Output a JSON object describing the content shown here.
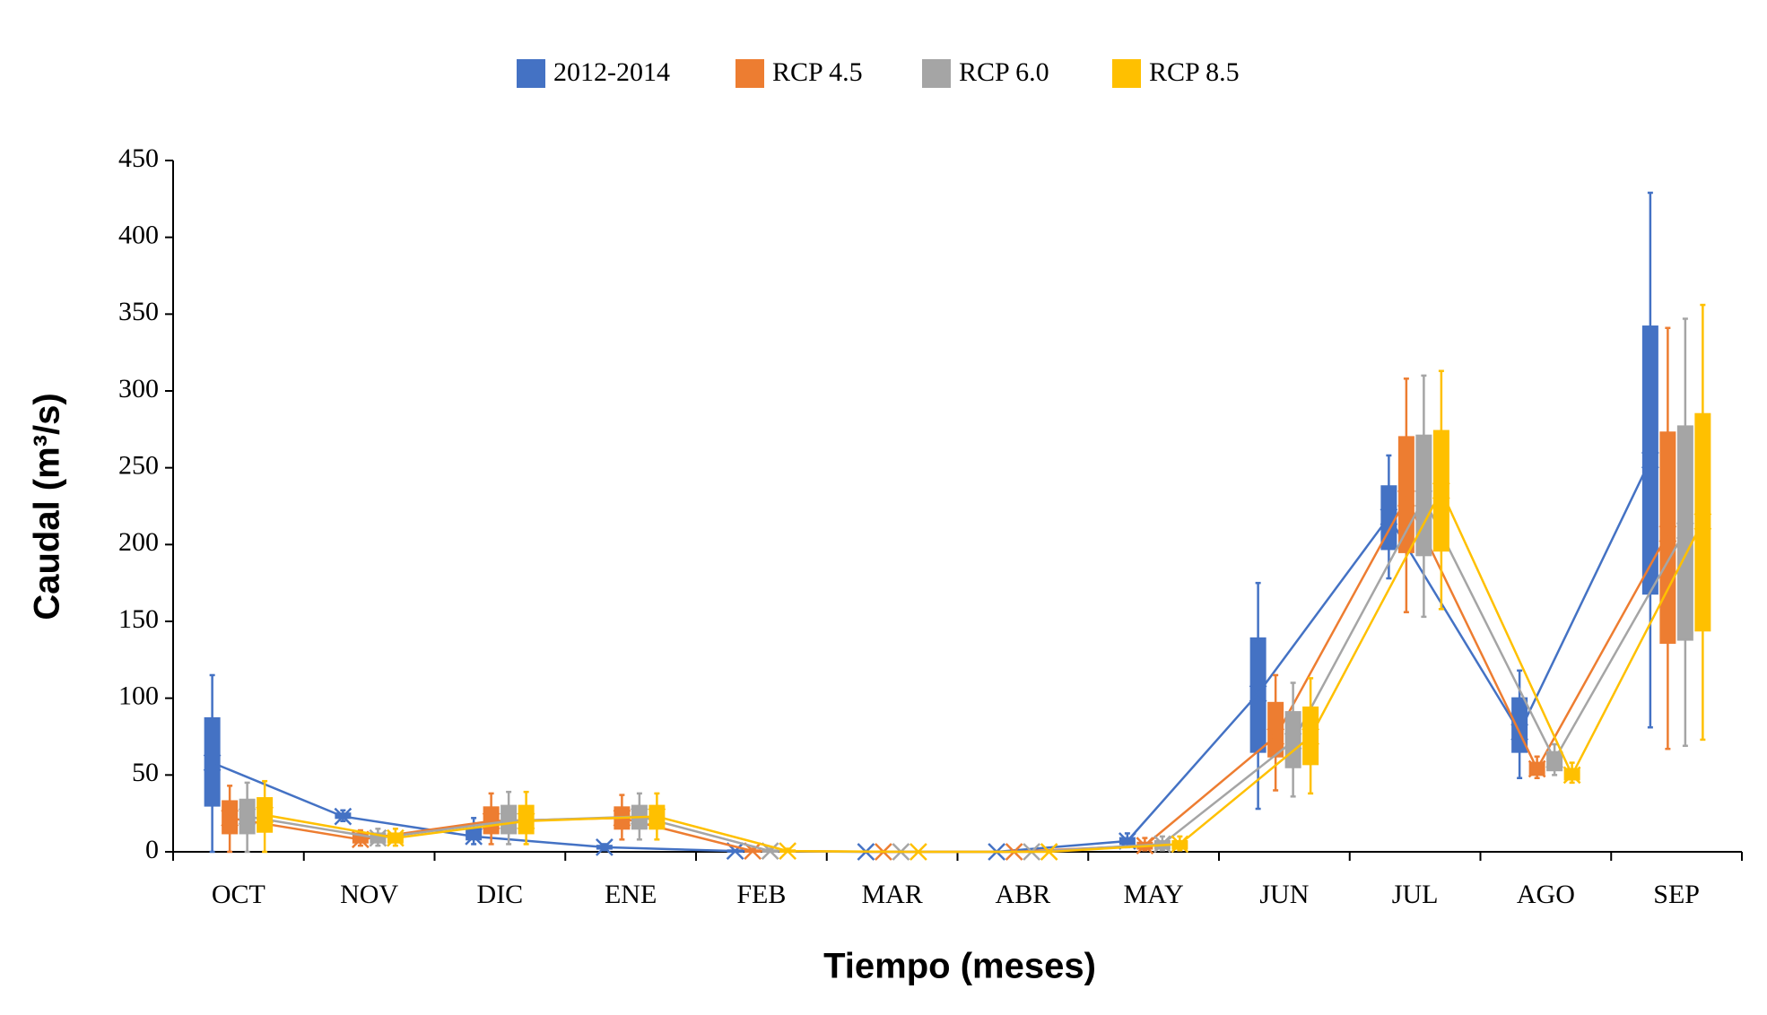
{
  "chart_data": {
    "type": "box",
    "xlabel": "Tiempo (meses)",
    "ylabel": "Caudal (m³/s)",
    "categories": [
      "OCT",
      "NOV",
      "DIC",
      "ENE",
      "FEB",
      "MAR",
      "ABR",
      "MAY",
      "JUN",
      "JUL",
      "AGO",
      "SEP"
    ],
    "ylim": [
      0,
      450
    ],
    "yticks": [
      0,
      50,
      100,
      150,
      200,
      250,
      300,
      350,
      400,
      450
    ],
    "legend": "top",
    "series": [
      {
        "name": "2012-2014",
        "color": "#4472c4",
        "min": [
          0,
          20,
          5,
          1,
          0,
          0,
          0,
          3,
          28,
          178,
          48,
          81
        ],
        "q1": [
          30,
          22,
          8,
          2,
          0,
          0,
          0,
          5,
          65,
          197,
          65,
          168
        ],
        "q3": [
          87,
          25,
          15,
          4,
          1,
          0,
          0,
          9,
          139,
          238,
          100,
          342
        ],
        "max": [
          115,
          27,
          22,
          5,
          1,
          0,
          0,
          12,
          175,
          258,
          118,
          429
        ],
        "mean": [
          58,
          23,
          10,
          3,
          0.5,
          0,
          0,
          7,
          103,
          218,
          78,
          255
        ]
      },
      {
        "name": "RCP 4.5",
        "color": "#ed7d31",
        "min": [
          0,
          4,
          5,
          8,
          0,
          0,
          0,
          1,
          40,
          156,
          48,
          67
        ],
        "q1": [
          12,
          6,
          12,
          15,
          0,
          0,
          0,
          2,
          62,
          195,
          50,
          136
        ],
        "q3": [
          33,
          12,
          29,
          29,
          1,
          0,
          0,
          6,
          97,
          270,
          58,
          273
        ],
        "max": [
          43,
          14,
          38,
          37,
          2,
          0,
          0,
          9,
          115,
          308,
          62,
          341
        ],
        "mean": [
          22,
          8,
          20,
          22,
          0.5,
          0,
          0,
          4,
          75,
          230,
          54,
          207
        ]
      },
      {
        "name": "RCP 6.0",
        "color": "#a5a5a5",
        "min": [
          0,
          4,
          5,
          8,
          0,
          0,
          0,
          1,
          36,
          153,
          50,
          69
        ],
        "q1": [
          12,
          6,
          12,
          15,
          0,
          0,
          0,
          2,
          55,
          193,
          53,
          138
        ],
        "q3": [
          34,
          12,
          30,
          30,
          1,
          0,
          0,
          7,
          91,
          271,
          65,
          277
        ],
        "max": [
          45,
          15,
          39,
          38,
          2,
          0,
          0,
          10,
          110,
          310,
          70,
          347
        ],
        "mean": [
          23,
          9,
          20,
          23,
          0.5,
          0,
          0,
          5,
          72,
          230,
          60,
          209
        ]
      },
      {
        "name": "RCP 8.5",
        "color": "#ffc000",
        "min": [
          0,
          4,
          5,
          8,
          0,
          0,
          0,
          1,
          38,
          158,
          45,
          73
        ],
        "q1": [
          13,
          6,
          12,
          15,
          0,
          0,
          0,
          2,
          57,
          196,
          47,
          144
        ],
        "q3": [
          35,
          12,
          30,
          30,
          1,
          0,
          0,
          7,
          94,
          274,
          54,
          285
        ],
        "max": [
          46,
          15,
          39,
          38,
          2,
          0,
          0,
          10,
          113,
          313,
          58,
          356
        ],
        "mean": [
          24,
          9,
          20,
          23,
          0.5,
          0,
          0,
          5,
          75,
          235,
          50,
          215
        ]
      }
    ]
  }
}
